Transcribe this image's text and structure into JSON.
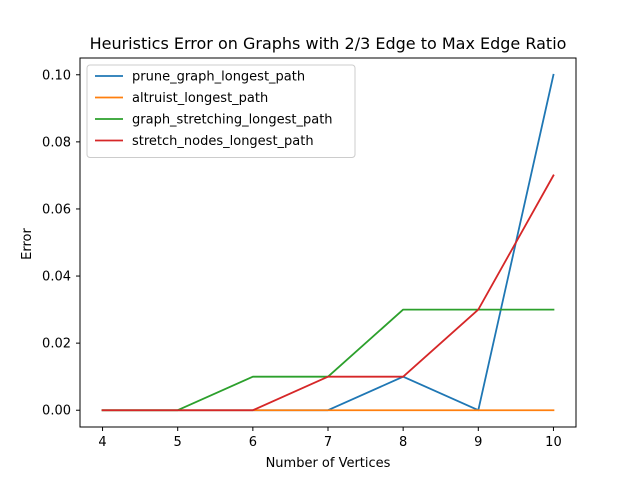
{
  "chart_data": {
    "type": "line",
    "title": "Heuristics Error on Graphs with 2/3 Edge to Max Edge Ratio",
    "xlabel": "Number of Vertices",
    "ylabel": "Error",
    "x": [
      4,
      5,
      6,
      7,
      8,
      9,
      10
    ],
    "xlim": [
      3.7,
      10.3
    ],
    "ylim": [
      -0.005,
      0.105
    ],
    "xticks": [
      "4",
      "5",
      "6",
      "7",
      "8",
      "9",
      "10"
    ],
    "yticks": [
      "0.00",
      "0.02",
      "0.04",
      "0.06",
      "0.08",
      "0.10"
    ],
    "grid": false,
    "legend_position": "top-left",
    "series": [
      {
        "name": "prune_graph_longest_path",
        "color": "#1f77b4",
        "values": [
          0,
          0,
          0,
          0,
          0.01,
          0,
          0.1
        ]
      },
      {
        "name": "altruist_longest_path",
        "color": "#ff7f0e",
        "values": [
          0,
          0,
          0,
          0,
          0,
          0,
          0
        ]
      },
      {
        "name": "graph_stretching_longest_path",
        "color": "#2ca02c",
        "values": [
          0,
          0,
          0.01,
          0.01,
          0.03,
          0.03,
          0.03
        ]
      },
      {
        "name": "stretch_nodes_longest_path",
        "color": "#d62728",
        "values": [
          0,
          0,
          0,
          0.01,
          0.01,
          0.03,
          0.07
        ]
      }
    ]
  }
}
